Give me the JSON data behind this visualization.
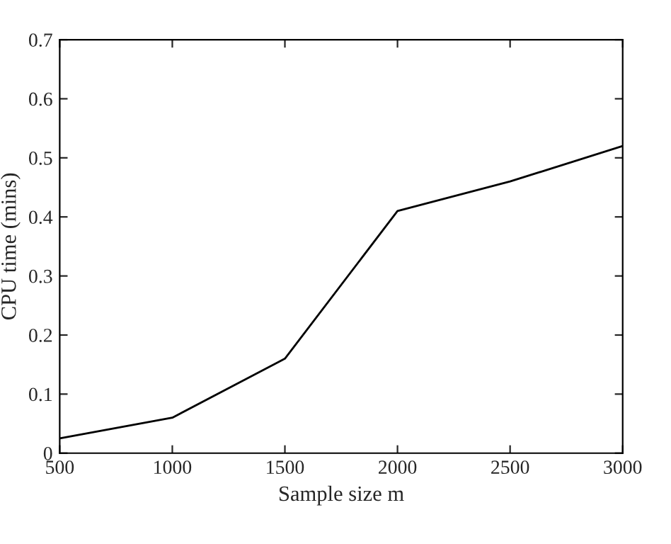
{
  "chart_data": {
    "type": "line",
    "xlabel": "Sample size m",
    "ylabel": "CPU time (mins)",
    "x": [
      500,
      1000,
      1500,
      2000,
      2500,
      3000
    ],
    "series": [
      {
        "color": "#000000",
        "values": [
          0.025,
          0.06,
          0.16,
          0.41,
          0.46,
          0.52
        ]
      }
    ],
    "xlim": [
      500,
      3000
    ],
    "xticks": [
      500,
      1000,
      1500,
      2000,
      2500,
      3000
    ],
    "ylim": [
      0,
      0.7
    ],
    "yticks": [
      0,
      0.1,
      0.2,
      0.3,
      0.4,
      0.5,
      0.6,
      0.7
    ],
    "grid": false,
    "marker": "none",
    "line_style": "solid"
  }
}
